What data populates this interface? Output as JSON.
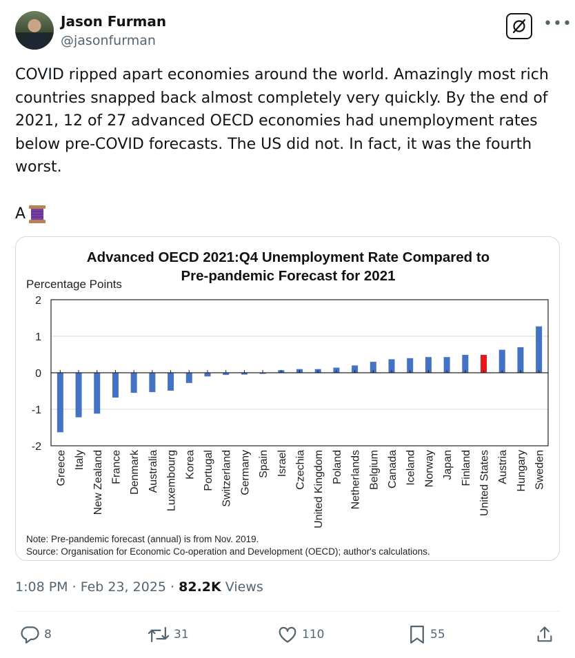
{
  "author": {
    "name": "Jason Furman",
    "handle": "@jasonfurman"
  },
  "tweet": {
    "lines": [
      "COVID ripped apart economies around the world. Amazingly most rich",
      "countries snapped back almost completely very quickly. By the end of",
      "2021, 12 of 27 advanced OECD economies had unemployment rates",
      "below pre-COVID forecasts. The US did not. In fact, it was the fourth",
      "worst."
    ],
    "thread_marker": "A"
  },
  "chart_data": {
    "type": "bar",
    "title": "Advanced OECD 2021:Q4 Unemployment Rate Compared to Pre-pandemic Forecast for 2021",
    "title_lines": [
      "Advanced OECD 2021:Q4 Unemployment Rate Compared to",
      "Pre-pandemic Forecast for 2021"
    ],
    "ylabel": "Percentage Points",
    "xlabel": "",
    "ylim": [
      -2,
      2
    ],
    "yticks": [
      "2",
      "1",
      "0",
      "-1",
      "-2"
    ],
    "grid": true,
    "highlight_category": "United States",
    "colors": {
      "bar": "#4472c4",
      "highlight": "#e8171b"
    },
    "categories": [
      "Greece",
      "Italy",
      "New Zealand",
      "France",
      "Denmark",
      "Australia",
      "Luxembourg",
      "Korea",
      "Portugal",
      "Switzerland",
      "Germany",
      "Spain",
      "Israel",
      "Czechia",
      "United Kingdom",
      "Poland",
      "Netherlands",
      "Belgium",
      "Canada",
      "Iceland",
      "Norway",
      "Japan",
      "Finland",
      "United States",
      "Austria",
      "Hungary",
      "Sweden"
    ],
    "values": [
      -1.63,
      -1.22,
      -1.12,
      -0.68,
      -0.55,
      -0.53,
      -0.49,
      -0.28,
      -0.1,
      -0.06,
      -0.05,
      -0.03,
      0.07,
      0.1,
      0.1,
      0.14,
      0.2,
      0.3,
      0.37,
      0.4,
      0.43,
      0.43,
      0.49,
      0.49,
      0.63,
      0.7,
      1.27
    ],
    "note": "Note: Pre-pandemic forecast (annual) is from Nov. 2019.",
    "source": "Source: Organisation for Economic Co-operation and Development (OECD); author's calculations."
  },
  "meta": {
    "time": "1:08 PM",
    "separator": "·",
    "date": "Feb 23, 2025",
    "views_count": "82.2K",
    "views_label": "Views"
  },
  "actions": {
    "replies": "8",
    "reposts": "31",
    "likes": "110",
    "bookmarks": "55"
  },
  "icons": [
    "grok-icon",
    "more-icon",
    "reply-icon",
    "repost-icon",
    "like-icon",
    "bookmark-icon",
    "share-icon",
    "spool-emoji-icon"
  ]
}
